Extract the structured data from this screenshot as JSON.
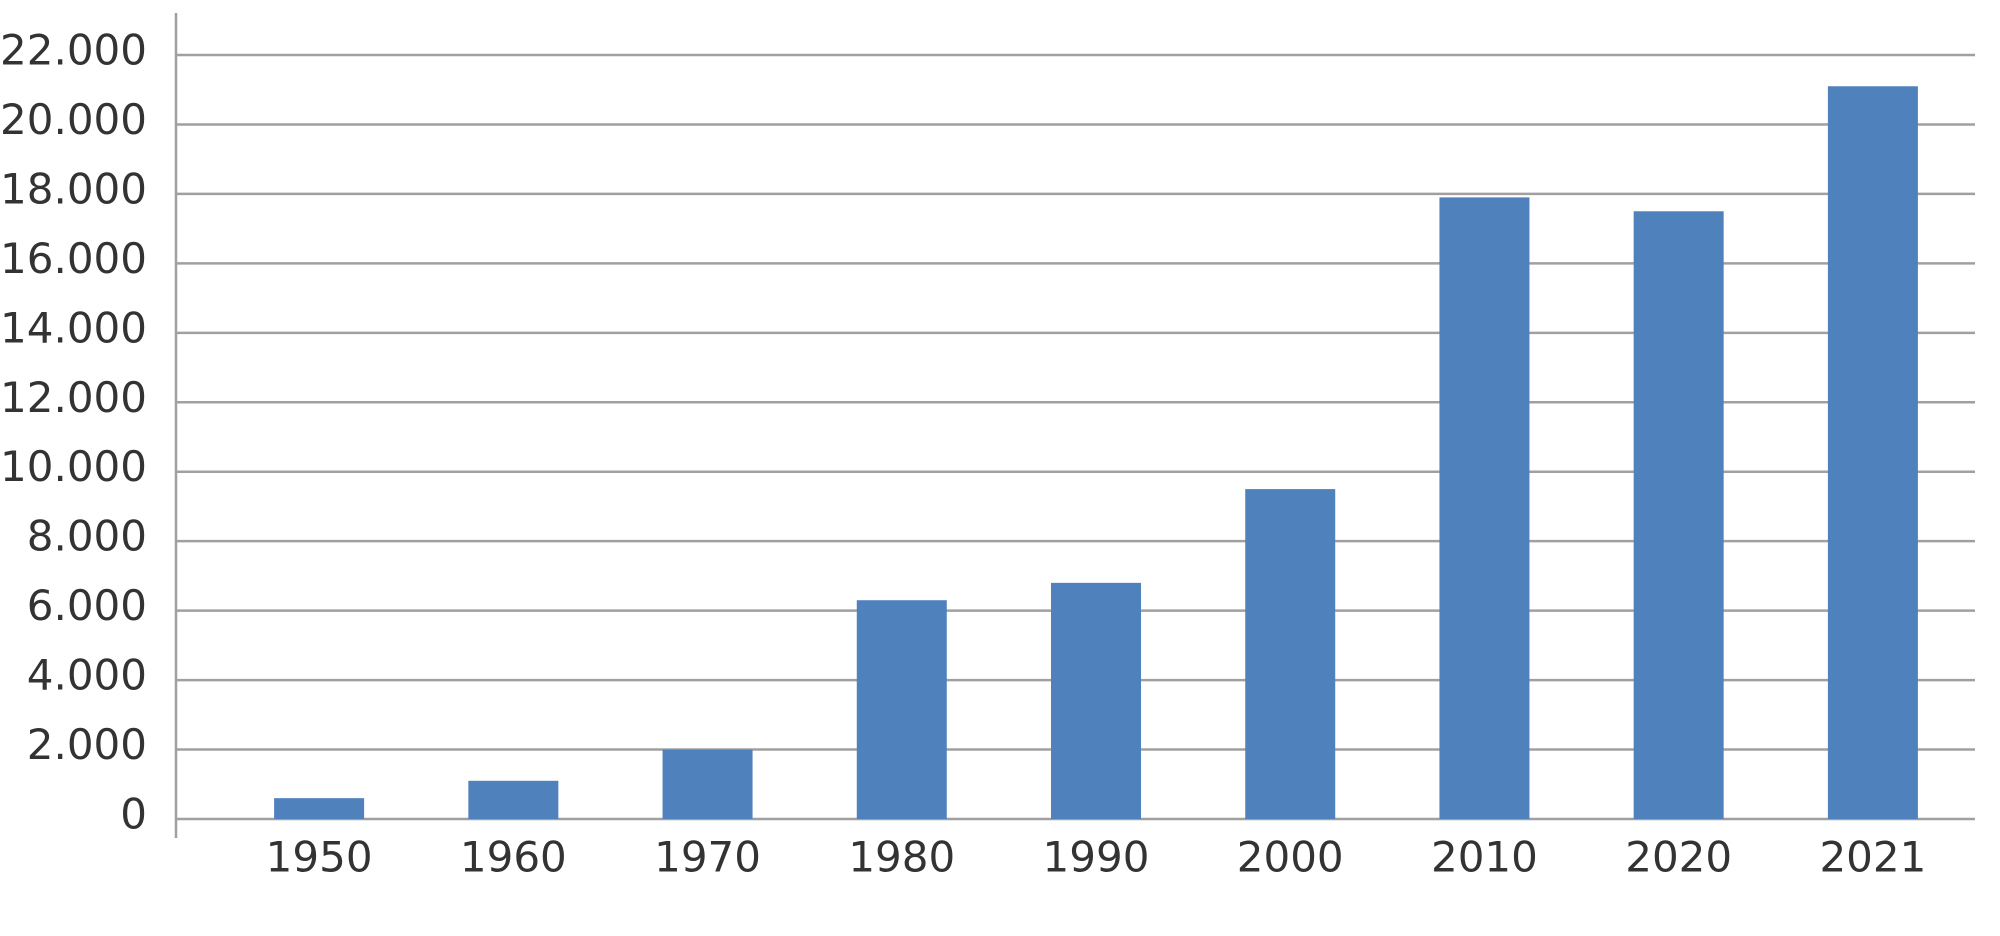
{
  "chart_data": {
    "type": "bar",
    "categories": [
      "1950",
      "1960",
      "1970",
      "1980",
      "1990",
      "2000",
      "2010",
      "2020",
      "2021"
    ],
    "values": [
      600,
      1100,
      2000,
      6300,
      6800,
      9500,
      17900,
      17500,
      21100
    ],
    "color": "#4f81bd",
    "ylim": [
      0,
      22000
    ],
    "yticks": [
      0,
      {
        "value": 2000,
        "label": "2.000"
      },
      {
        "value": 4000,
        "label": "4.000"
      },
      {
        "value": 6000,
        "label": "6.000"
      },
      {
        "value": 8000,
        "label": "8.000"
      },
      {
        "value": 10000,
        "label": "10.000"
      },
      {
        "value": 12000,
        "label": "12.000"
      },
      {
        "value": 14000,
        "label": "14.000"
      },
      {
        "value": 16000,
        "label": "16.000"
      },
      {
        "value": 18000,
        "label": "18.000"
      },
      {
        "value": 20000,
        "label": "20.000"
      },
      {
        "value": 22000,
        "label": "22.000"
      }
    ],
    "grid": true
  }
}
